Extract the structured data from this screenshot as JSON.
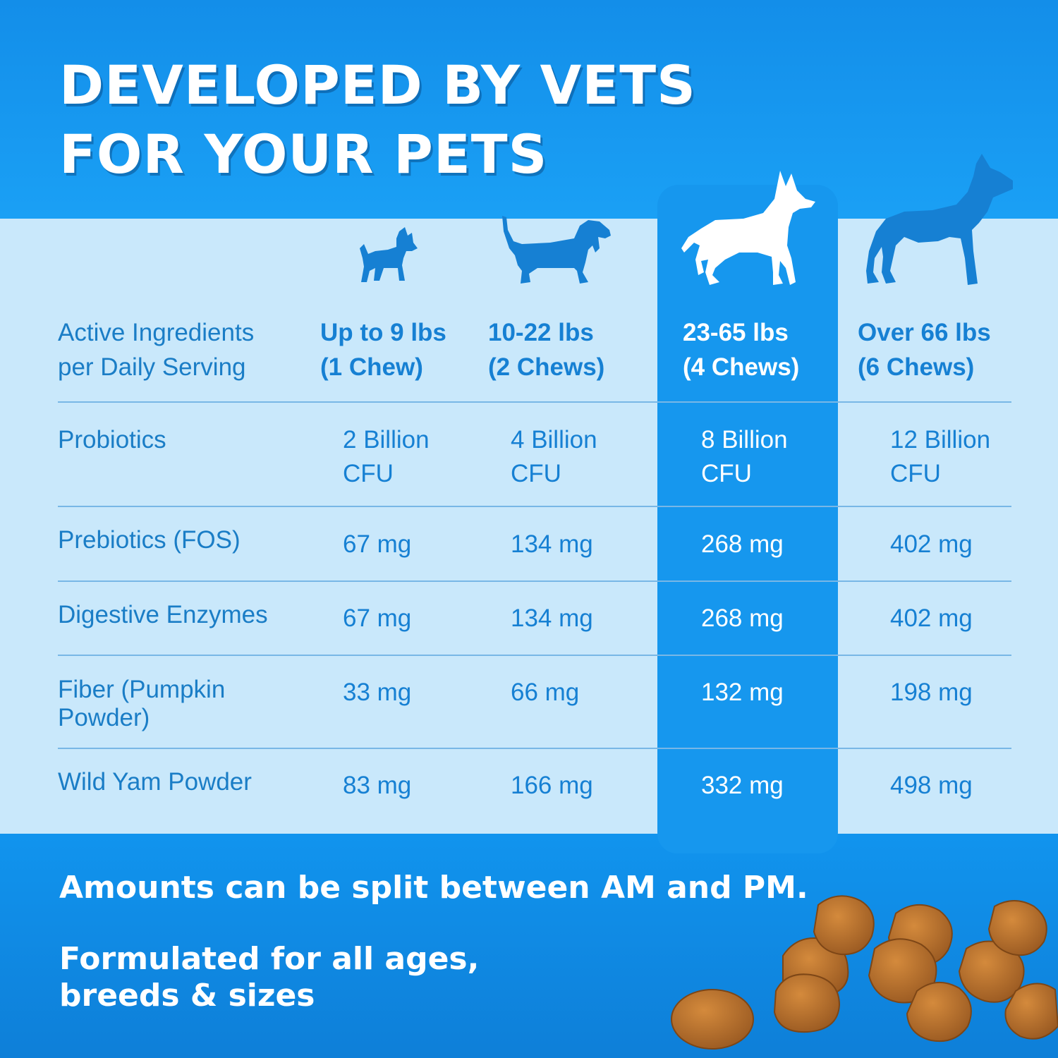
{
  "headline": {
    "line1": "DEVELOPED BY VETS",
    "line2": "FOR YOUR PETS"
  },
  "header": {
    "label_line1": "Active Ingredients",
    "label_line2": "per Daily Serving",
    "columns": [
      {
        "weight": "Up to 9 lbs",
        "chews": "(1 Chew)",
        "icon": "small-dog-icon"
      },
      {
        "weight": "10-22 lbs",
        "chews": "(2 Chews)",
        "icon": "dachshund-icon"
      },
      {
        "weight": "23-65 lbs",
        "chews": "(4 Chews)",
        "icon": "shepherd-icon"
      },
      {
        "weight": "Over 66 lbs",
        "chews": "(6 Chews)",
        "icon": "boxer-icon"
      }
    ]
  },
  "rows": [
    {
      "label": [
        "Probiotics"
      ],
      "values": [
        [
          "2 Billion",
          "CFU"
        ],
        [
          "4 Billion",
          "CFU"
        ],
        [
          "8 Billion",
          "CFU"
        ],
        [
          "12 Billion",
          "CFU"
        ]
      ]
    },
    {
      "label": [
        "Prebiotics (FOS)"
      ],
      "values": [
        [
          "67 mg"
        ],
        [
          "134 mg"
        ],
        [
          "268 mg"
        ],
        [
          "402 mg"
        ]
      ]
    },
    {
      "label": [
        "Digestive Enzymes"
      ],
      "values": [
        [
          "67 mg"
        ],
        [
          "134 mg"
        ],
        [
          "268 mg"
        ],
        [
          "402 mg"
        ]
      ]
    },
    {
      "label": [
        "Fiber (Pumpkin",
        "Powder)"
      ],
      "values": [
        [
          "33 mg"
        ],
        [
          "66 mg"
        ],
        [
          "132 mg"
        ],
        [
          "198 mg"
        ]
      ]
    },
    {
      "label": [
        "Wild Yam Powder"
      ],
      "values": [
        [
          "83 mg"
        ],
        [
          "166 mg"
        ],
        [
          "332 mg"
        ],
        [
          "498 mg"
        ]
      ]
    }
  ],
  "footnotes": {
    "note1": "Amounts can be split between AM and PM.",
    "note2_line1": "Formulated for all ages,",
    "note2_line2": "breeds & sizes"
  },
  "colors": {
    "brand_blue": "#138ee9",
    "table_bg": "#c9e8fb",
    "highlight_column": "#1697ee",
    "text_blue": "#1680d3",
    "chew_brown": "#b8722f"
  }
}
